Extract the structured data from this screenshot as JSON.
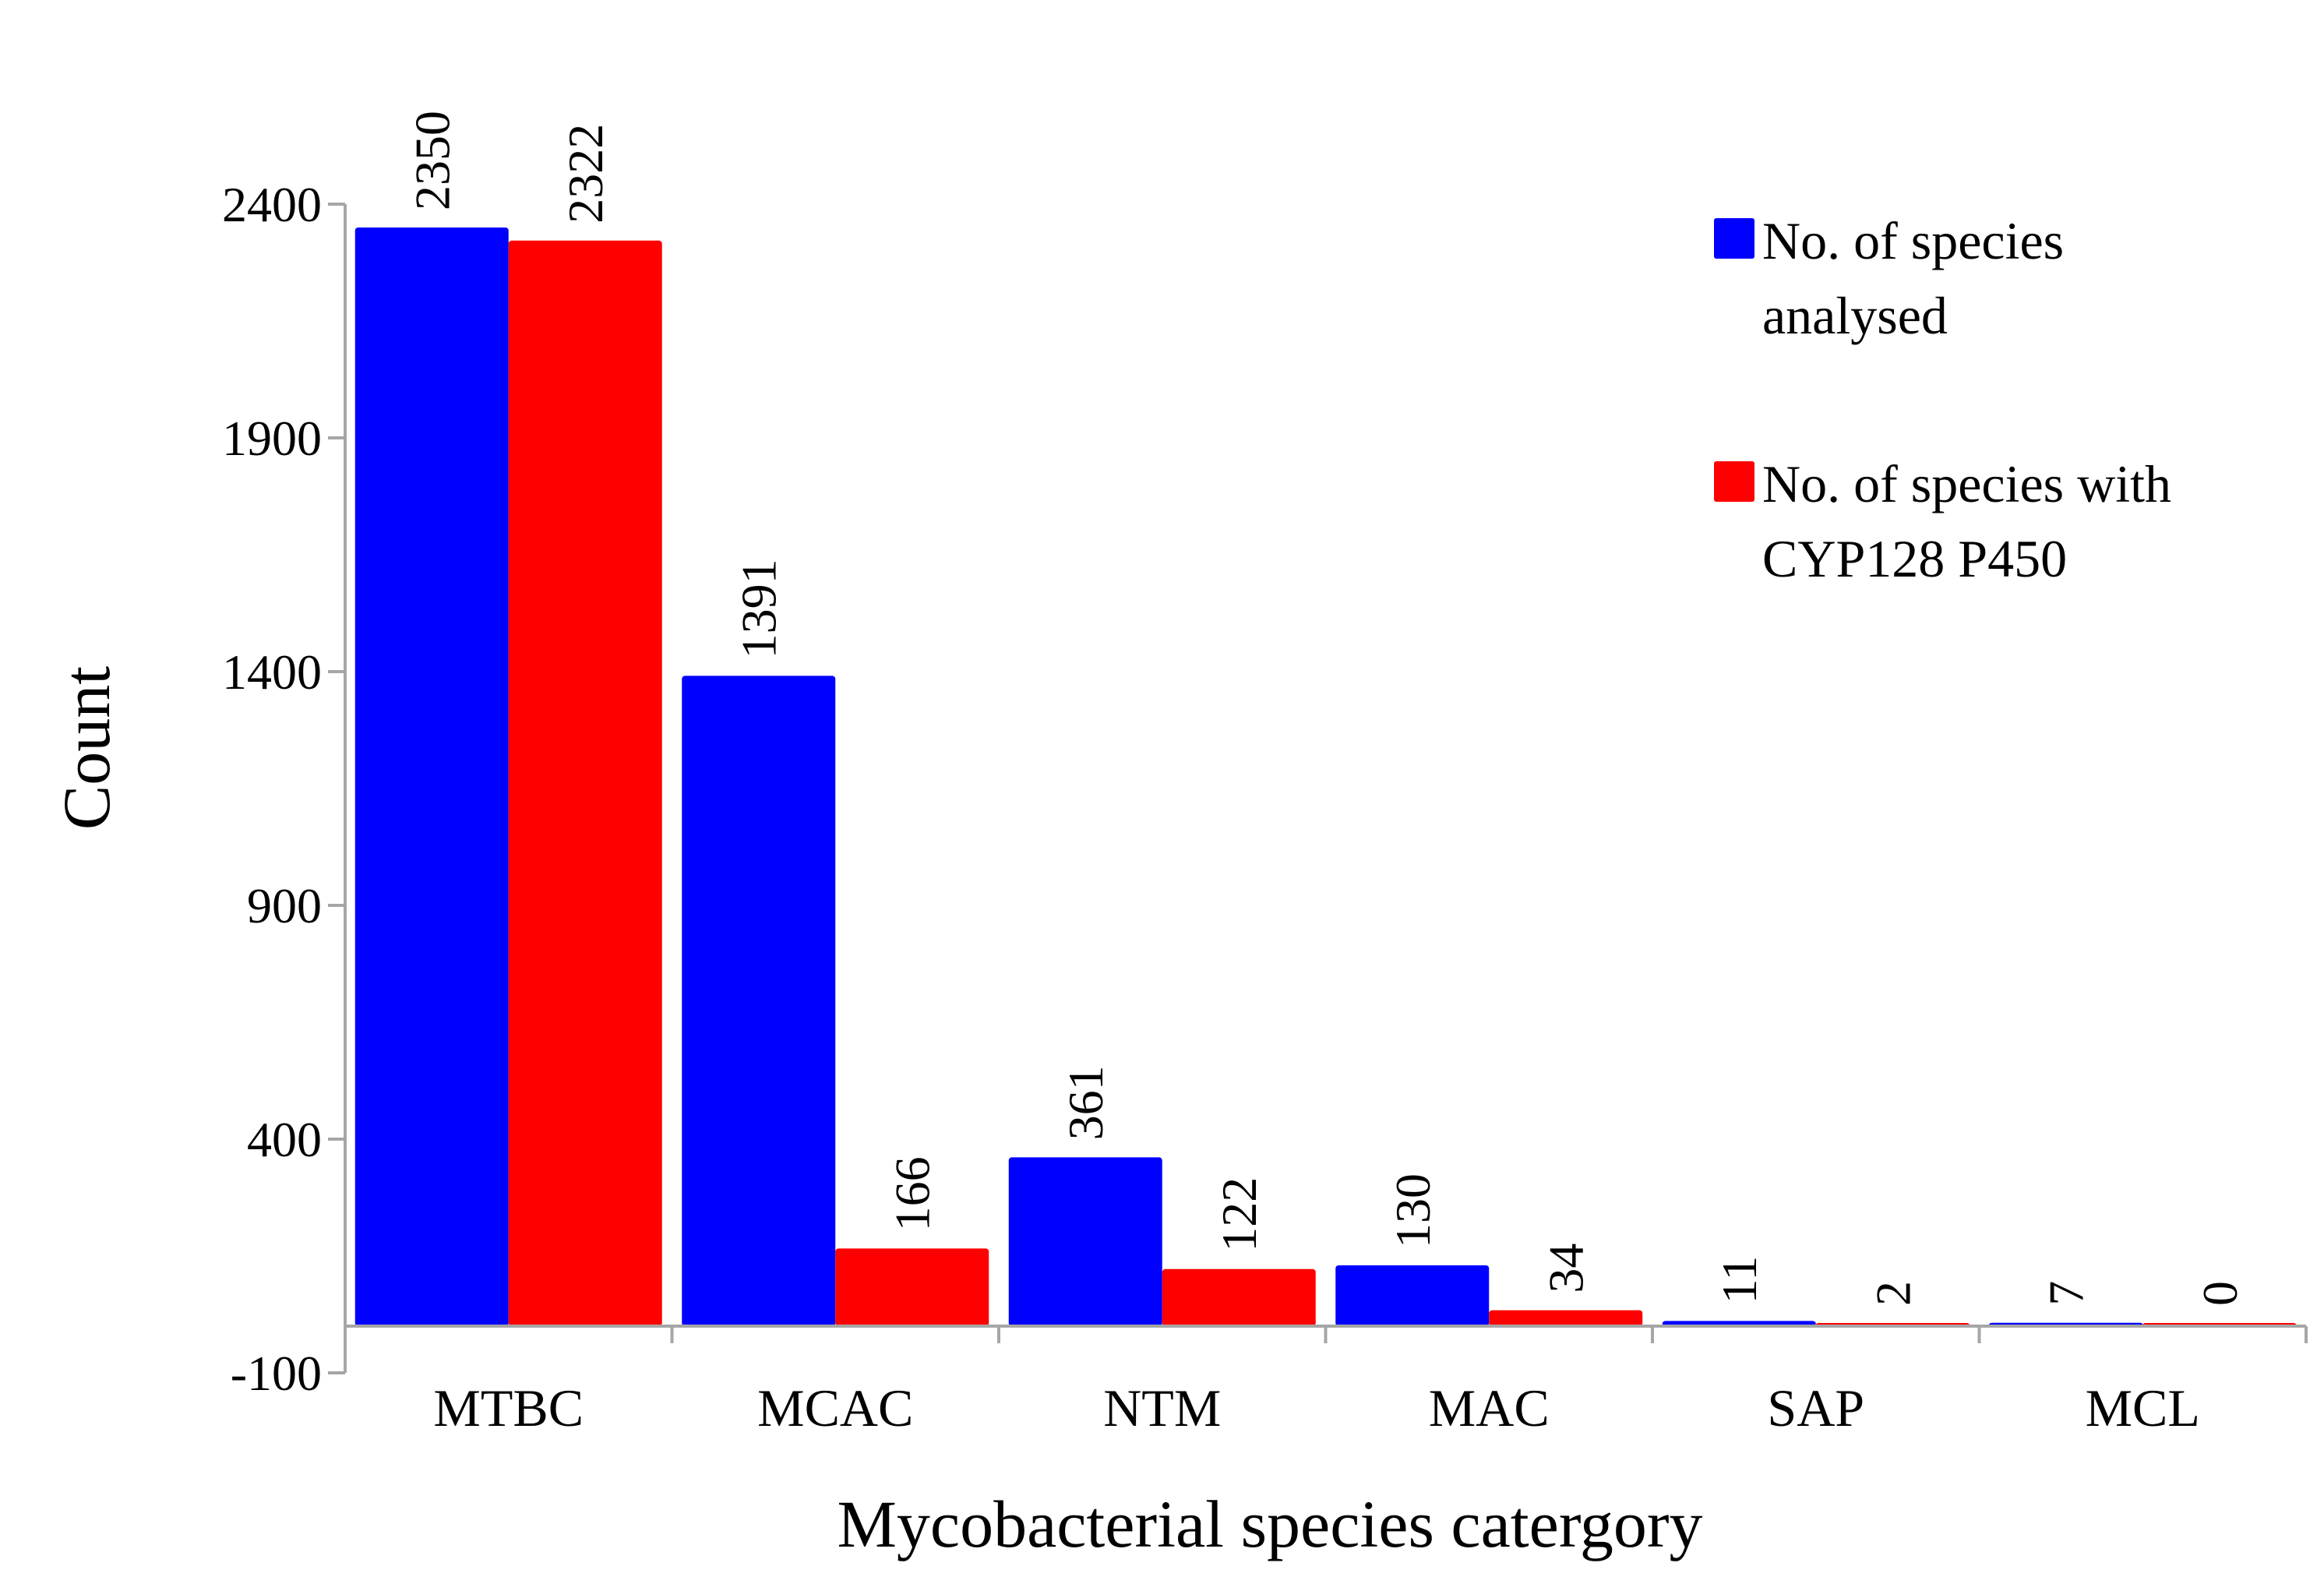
{
  "chart_data": {
    "type": "bar",
    "title": "",
    "xlabel": "Mycobacterial species catergory",
    "ylabel": "Count",
    "ylim": [
      -100,
      2400
    ],
    "yticks": [
      "2400",
      "1900",
      "1400",
      "900",
      "400",
      "-100"
    ],
    "ytick_values": [
      2400,
      1900,
      1400,
      900,
      400,
      -100
    ],
    "categories": [
      "MTBC",
      "MCAC",
      "NTM",
      "MAC",
      "SAP",
      "MCL"
    ],
    "series": [
      {
        "name_lines": [
          "No. of species",
          "analysed"
        ],
        "color": "#0000ff",
        "values": [
          2350,
          1391,
          361,
          130,
          11,
          7
        ],
        "labels": [
          "2350",
          "1391",
          "361",
          "130",
          "11",
          "7"
        ]
      },
      {
        "name_lines": [
          "No. of species with",
          "CYP128 P450"
        ],
        "color": "#ff0000",
        "values": [
          2322,
          166,
          122,
          34,
          2,
          0
        ],
        "labels": [
          "2322",
          "166",
          "122",
          "34",
          "2",
          "0"
        ]
      }
    ],
    "legend_position": "top-right",
    "grid": false
  }
}
